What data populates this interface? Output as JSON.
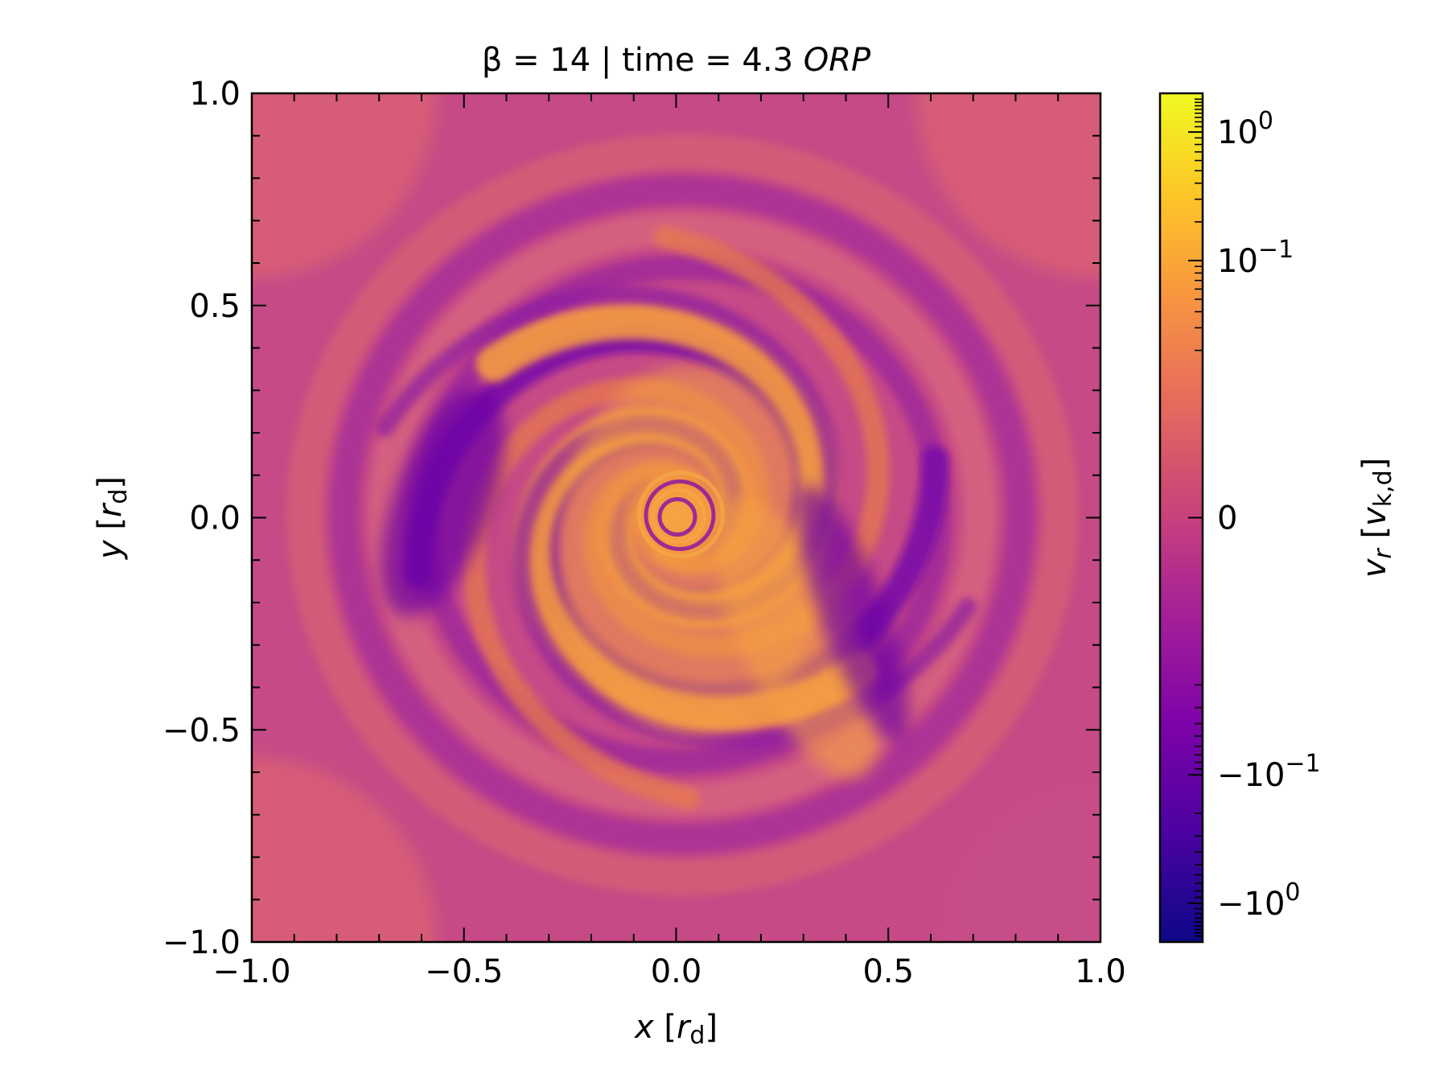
{
  "chart_data": {
    "type": "heatmap",
    "title": {
      "prefix": "β = 14 | time = 4.3 ",
      "suffix": "ORP"
    },
    "xlabel": {
      "var": "x",
      "unit_open": " [",
      "unit_var": "r",
      "unit_sub": "d",
      "unit_close": "]"
    },
    "ylabel": {
      "var": "y",
      "unit_open": " [",
      "unit_var": "r",
      "unit_sub": "d",
      "unit_close": "]"
    },
    "xlim": [
      -1.0,
      1.0
    ],
    "ylim": [
      -1.0,
      1.0
    ],
    "x_ticks": [
      {
        "value": -1.0,
        "label": "−1.0"
      },
      {
        "value": -0.5,
        "label": "−0.5"
      },
      {
        "value": 0.0,
        "label": "0.0"
      },
      {
        "value": 0.5,
        "label": "0.5"
      },
      {
        "value": 1.0,
        "label": "1.0"
      }
    ],
    "y_ticks": [
      {
        "value": -1.0,
        "label": "−1.0"
      },
      {
        "value": -0.5,
        "label": "−0.5"
      },
      {
        "value": 0.0,
        "label": "0.0"
      },
      {
        "value": 0.5,
        "label": "0.5"
      },
      {
        "value": 1.0,
        "label": "1.0"
      }
    ],
    "colormap": "plasma",
    "colorbar": {
      "scale": "symlog",
      "label": {
        "var": "v",
        "sub": "r",
        "unit_open": " [",
        "unit_var": "v",
        "unit_sub": "k,d",
        "unit_close": "]"
      },
      "ticks": [
        {
          "value": 1,
          "base": "10",
          "exp": "0",
          "sign": ""
        },
        {
          "value": 0.1,
          "base": "10",
          "exp": "−1",
          "sign": ""
        },
        {
          "value": 0,
          "base": "0",
          "exp": "",
          "sign": ""
        },
        {
          "value": -0.1,
          "base": "10",
          "exp": "−1",
          "sign": "−"
        },
        {
          "value": -1,
          "base": "10",
          "exp": "0",
          "sign": "−"
        }
      ]
    },
    "features": {
      "center": [
        0.0,
        0.0
      ],
      "spiral_arms": 2,
      "outer_background": "near 0 (magenta)",
      "inner_region": "positive (orange) spiral structure with negative (purple) lanes"
    }
  }
}
